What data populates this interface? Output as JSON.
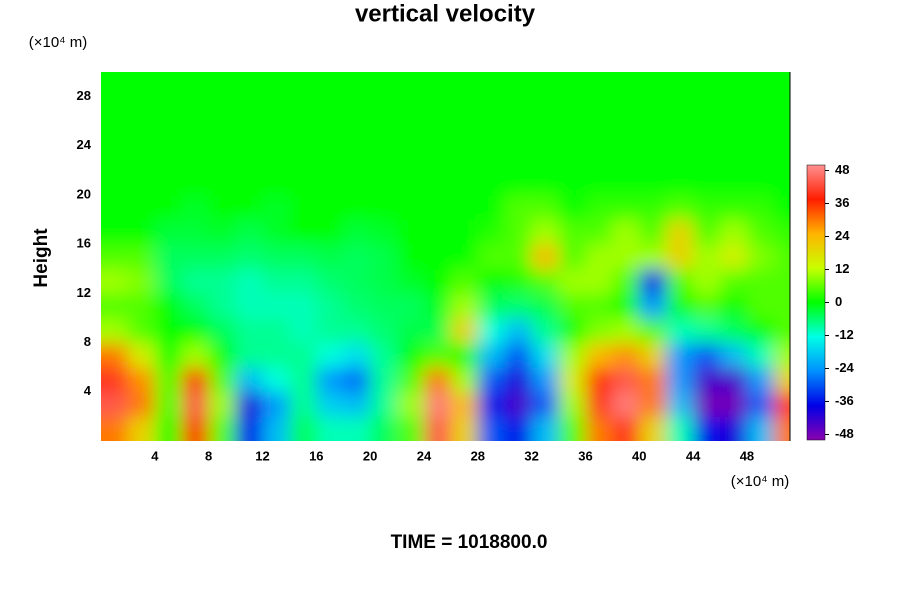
{
  "chart_data": {
    "type": "contour",
    "title": "vertical velocity",
    "ylabel": "Height",
    "xunit": "(×10⁴ m)",
    "yunit": "(×10⁴ m)",
    "footer": "TIME = 1018800.0",
    "xlim": [
      0,
      51.2
    ],
    "ylim": [
      0,
      30
    ],
    "xticks": [
      4,
      8,
      12,
      16,
      20,
      24,
      28,
      32,
      36,
      40,
      44,
      48
    ],
    "yticks": [
      4,
      8,
      12,
      16,
      20,
      24,
      28
    ],
    "zlim": [
      -50,
      50
    ],
    "colorbar_ticks": [
      48,
      36,
      24,
      12,
      0,
      -12,
      -24,
      -36,
      -48
    ],
    "colormap": [
      "#8a00b0",
      "#0000e6",
      "#0090ff",
      "#00ffe6",
      "#00ff00",
      "#c8ff00",
      "#ffb400",
      "#ff1e00",
      "#ff9090"
    ],
    "x": [
      1,
      3,
      5,
      7,
      9,
      11,
      13,
      15,
      17,
      19,
      21,
      23,
      25,
      27,
      29,
      31,
      33,
      35,
      37,
      39,
      41,
      43,
      45,
      47,
      49,
      51
    ],
    "y": [
      1,
      3,
      5,
      7,
      9,
      11,
      13,
      15,
      17,
      19,
      21,
      23,
      25,
      27,
      29
    ],
    "z": [
      [
        30,
        20,
        0,
        36,
        5,
        -36,
        -20,
        -5,
        -10,
        -10,
        -5,
        5,
        44,
        20,
        -30,
        -36,
        -20,
        5,
        30,
        40,
        20,
        -10,
        -36,
        -40,
        -20,
        30
      ],
      [
        44,
        30,
        5,
        44,
        10,
        -40,
        -24,
        -8,
        -18,
        -20,
        -8,
        10,
        48,
        24,
        -36,
        -44,
        -30,
        10,
        40,
        48,
        30,
        -20,
        -48,
        -48,
        -30,
        40
      ],
      [
        40,
        28,
        5,
        36,
        5,
        -20,
        -12,
        -8,
        -24,
        -28,
        -8,
        5,
        30,
        10,
        -30,
        -40,
        -24,
        15,
        36,
        44,
        30,
        -24,
        -44,
        -44,
        -24,
        20
      ],
      [
        30,
        15,
        0,
        10,
        0,
        -8,
        -8,
        -8,
        -12,
        -16,
        -8,
        0,
        5,
        0,
        -20,
        -30,
        -16,
        10,
        24,
        28,
        20,
        -24,
        -30,
        -20,
        -10,
        10
      ],
      [
        10,
        5,
        0,
        0,
        -5,
        -8,
        -8,
        -10,
        -8,
        -8,
        -6,
        -4,
        -4,
        20,
        -12,
        -20,
        -8,
        0,
        8,
        10,
        5,
        -10,
        -8,
        -5,
        0,
        5
      ],
      [
        5,
        5,
        0,
        -5,
        -8,
        -10,
        -10,
        -10,
        -8,
        -6,
        -5,
        -5,
        -2,
        10,
        -5,
        -6,
        -4,
        5,
        5,
        0,
        -24,
        0,
        5,
        0,
        5,
        5
      ],
      [
        10,
        8,
        -5,
        -8,
        -8,
        -10,
        -8,
        -8,
        -6,
        -5,
        -4,
        -2,
        0,
        5,
        0,
        2,
        5,
        10,
        10,
        5,
        -36,
        5,
        10,
        5,
        5,
        5
      ],
      [
        5,
        5,
        -5,
        -5,
        -5,
        -6,
        -5,
        -5,
        -4,
        -5,
        -4,
        0,
        0,
        0,
        5,
        5,
        24,
        5,
        10,
        10,
        10,
        20,
        10,
        15,
        8,
        5
      ],
      [
        0,
        0,
        -3,
        -3,
        -2,
        -4,
        -2,
        0,
        0,
        -3,
        -2,
        0,
        0,
        0,
        2,
        5,
        10,
        5,
        5,
        10,
        5,
        20,
        5,
        10,
        5,
        3
      ],
      [
        0,
        0,
        0,
        -2,
        0,
        0,
        -2,
        0,
        0,
        0,
        0,
        0,
        0,
        0,
        0,
        5,
        5,
        0,
        3,
        3,
        3,
        5,
        3,
        3,
        3,
        0
      ],
      [
        0,
        0,
        0,
        0,
        0,
        0,
        0,
        0,
        0,
        0,
        0,
        0,
        0,
        0,
        0,
        0,
        0,
        0,
        0,
        0,
        0,
        0,
        0,
        0,
        0,
        0
      ],
      [
        0,
        0,
        0,
        0,
        0,
        0,
        0,
        0,
        0,
        0,
        0,
        0,
        0,
        0,
        0,
        0,
        0,
        0,
        0,
        0,
        0,
        0,
        0,
        0,
        0,
        0
      ],
      [
        0,
        0,
        0,
        0,
        0,
        0,
        0,
        0,
        0,
        0,
        0,
        0,
        0,
        0,
        0,
        0,
        0,
        0,
        0,
        0,
        0,
        0,
        0,
        0,
        0,
        0
      ],
      [
        0,
        0,
        0,
        0,
        0,
        0,
        0,
        0,
        0,
        0,
        0,
        0,
        0,
        0,
        0,
        0,
        0,
        0,
        0,
        0,
        0,
        0,
        0,
        0,
        0,
        0
      ],
      [
        0,
        0,
        0,
        0,
        0,
        0,
        0,
        0,
        0,
        0,
        0,
        0,
        0,
        0,
        0,
        0,
        0,
        0,
        0,
        0,
        0,
        0,
        0,
        0,
        0,
        0
      ]
    ]
  }
}
